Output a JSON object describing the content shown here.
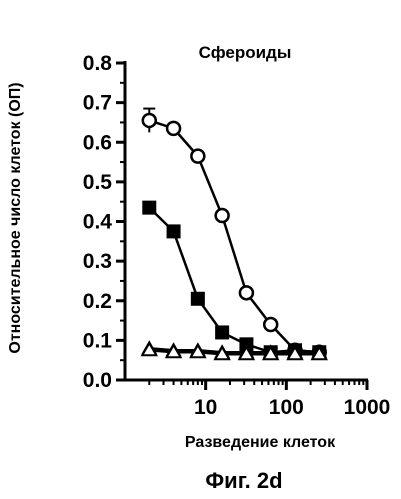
{
  "chart_data": {
    "type": "scatter",
    "title": "Сфероиды",
    "xlabel": "Разведение клеток",
    "ylabel": "Относительное число клеток (ОП)",
    "caption": "Фиг. 2d",
    "x_scale": "log",
    "xlim": [
      1,
      1000
    ],
    "ylim": [
      0,
      0.8
    ],
    "x_ticks": [
      10,
      100,
      1000
    ],
    "x_tick_labels": [
      "10",
      "100",
      "1000"
    ],
    "y_ticks": [
      0.0,
      0.1,
      0.2,
      0.3,
      0.4,
      0.5,
      0.6,
      0.7,
      0.8
    ],
    "y_tick_labels": [
      "0.0",
      "0.1",
      "0.2",
      "0.3",
      "0.4",
      "0.5",
      "0.6",
      "0.7",
      "0.8"
    ],
    "grid": false,
    "legend": "none",
    "series": [
      {
        "marker": "circle-open",
        "x": [
          2,
          4,
          8,
          16,
          32,
          64,
          128,
          256
        ],
        "y": [
          0.655,
          0.635,
          0.565,
          0.415,
          0.22,
          0.14,
          0.075,
          0.07
        ],
        "error": [
          0.03,
          0.01,
          0.01,
          0.01,
          0.01,
          0.01,
          0.01,
          0.01
        ]
      },
      {
        "marker": "square-filled",
        "x": [
          2,
          4,
          8,
          16,
          32,
          64,
          128,
          256
        ],
        "y": [
          0.435,
          0.375,
          0.205,
          0.12,
          0.09,
          0.07,
          0.075,
          0.07
        ]
      },
      {
        "marker": "triangle-filled",
        "x": [
          2,
          4,
          8,
          16,
          32,
          64,
          128,
          256
        ],
        "y": [
          0.08,
          0.075,
          0.075,
          0.07,
          0.07,
          0.07,
          0.07,
          0.07
        ]
      },
      {
        "marker": "triangle-open",
        "x": [
          2,
          4,
          8,
          16,
          32,
          64,
          128,
          256
        ],
        "y": [
          0.075,
          0.07,
          0.07,
          0.065,
          0.065,
          0.065,
          0.065,
          0.065
        ]
      }
    ]
  }
}
